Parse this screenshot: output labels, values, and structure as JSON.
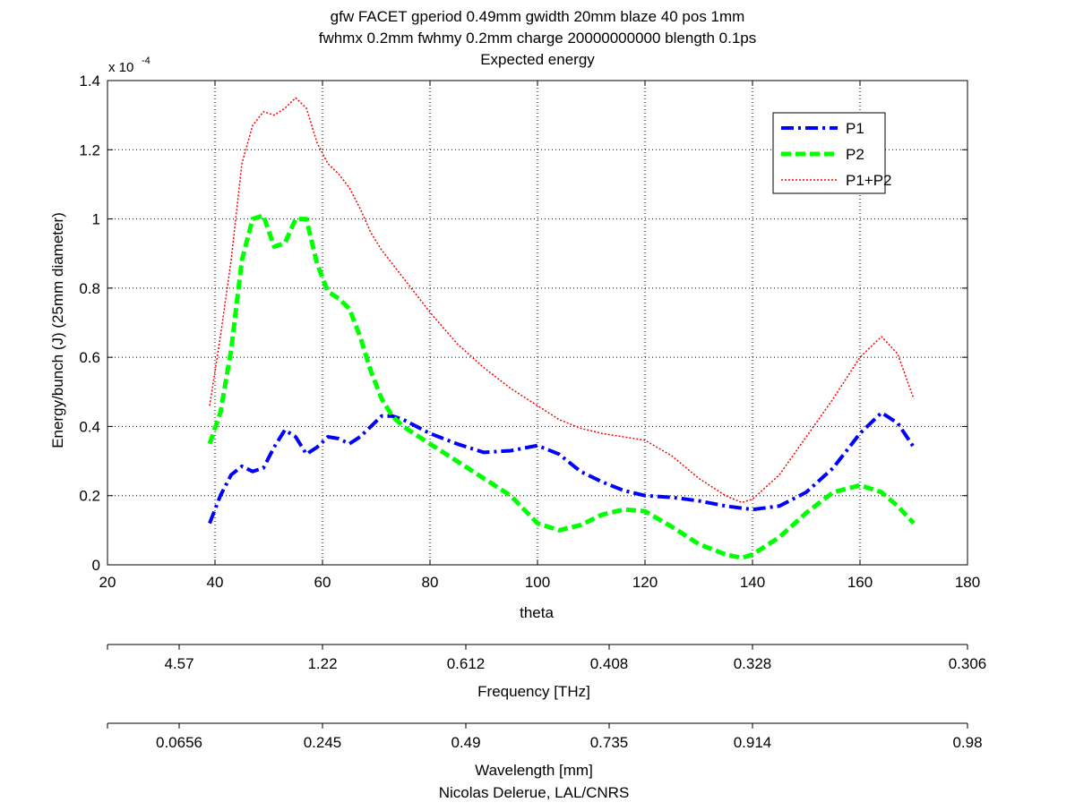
{
  "chart_data": {
    "type": "line",
    "title_lines": [
      "gfw FACET gperiod 0.49mm gwidth 20mm blaze 40 pos 1mm",
      "fwhmx 0.2mm fwhmy 0.2mm charge 20000000000 blength 0.1ps",
      "Expected energy"
    ],
    "xlabel": "theta",
    "ylabel": "Energy/bunch (J) (25mm diameter)",
    "y_multiplier_label": "x 10",
    "y_multiplier_exponent": "-4",
    "xlim": [
      20,
      180
    ],
    "ylim": [
      0,
      1.4
    ],
    "xticks": [
      20,
      40,
      60,
      80,
      100,
      120,
      140,
      160,
      180
    ],
    "xtick_labels": [
      "20",
      "40",
      "60",
      "80",
      "100",
      "120",
      "140",
      "160",
      "180"
    ],
    "yticks": [
      0,
      0.2,
      0.4,
      0.6,
      0.8,
      1.0,
      1.2,
      1.4
    ],
    "ytick_labels": [
      "0",
      "0.2",
      "0.4",
      "0.6",
      "0.8",
      "1",
      "1.2",
      "1.4"
    ],
    "grid": true,
    "legend_position": "top-right",
    "series": [
      {
        "name": "P1",
        "color": "#0000ff",
        "style": "dashdot",
        "x": [
          39,
          41,
          43,
          45,
          47,
          49,
          51,
          53,
          55,
          57,
          59,
          61,
          63,
          65,
          67,
          69,
          71,
          73,
          75,
          80,
          85,
          90,
          95,
          100,
          104,
          108,
          112,
          116,
          120,
          125,
          130,
          135,
          140,
          145,
          150,
          155,
          160,
          164,
          167,
          170
        ],
        "y": [
          0.12,
          0.2,
          0.26,
          0.285,
          0.27,
          0.28,
          0.34,
          0.39,
          0.37,
          0.32,
          0.34,
          0.37,
          0.365,
          0.35,
          0.37,
          0.4,
          0.43,
          0.43,
          0.42,
          0.38,
          0.35,
          0.325,
          0.33,
          0.345,
          0.32,
          0.27,
          0.24,
          0.215,
          0.2,
          0.195,
          0.185,
          0.17,
          0.16,
          0.17,
          0.21,
          0.28,
          0.38,
          0.44,
          0.41,
          0.34
        ]
      },
      {
        "name": "P2",
        "color": "#00ff00",
        "style": "dashed",
        "x": [
          39,
          41,
          43,
          45,
          47,
          49,
          51,
          53,
          55,
          57,
          59,
          61,
          63,
          65,
          67,
          69,
          71,
          73,
          75,
          80,
          85,
          90,
          95,
          100,
          104,
          108,
          112,
          116,
          120,
          125,
          130,
          135,
          138,
          140,
          145,
          150,
          155,
          160,
          164,
          167,
          170
        ],
        "y": [
          0.35,
          0.44,
          0.62,
          0.88,
          1.0,
          1.01,
          0.92,
          0.93,
          1.0,
          1.0,
          0.87,
          0.79,
          0.77,
          0.74,
          0.66,
          0.56,
          0.48,
          0.43,
          0.4,
          0.35,
          0.3,
          0.25,
          0.2,
          0.12,
          0.1,
          0.115,
          0.145,
          0.16,
          0.155,
          0.11,
          0.06,
          0.03,
          0.02,
          0.03,
          0.08,
          0.15,
          0.21,
          0.23,
          0.21,
          0.17,
          0.12
        ]
      },
      {
        "name": "P1+P2",
        "color": "#ff0000",
        "style": "dotted",
        "x": [
          39,
          41,
          43,
          45,
          47,
          49,
          51,
          53,
          55,
          57,
          59,
          61,
          63,
          65,
          67,
          69,
          71,
          73,
          75,
          80,
          85,
          90,
          95,
          100,
          104,
          108,
          112,
          116,
          120,
          125,
          130,
          135,
          138,
          140,
          145,
          150,
          155,
          160,
          164,
          167,
          170
        ],
        "y": [
          0.46,
          0.66,
          0.88,
          1.16,
          1.27,
          1.31,
          1.3,
          1.32,
          1.35,
          1.32,
          1.22,
          1.16,
          1.13,
          1.09,
          1.03,
          0.96,
          0.91,
          0.87,
          0.83,
          0.73,
          0.64,
          0.57,
          0.51,
          0.46,
          0.42,
          0.395,
          0.38,
          0.37,
          0.36,
          0.315,
          0.25,
          0.2,
          0.18,
          0.19,
          0.26,
          0.37,
          0.48,
          0.6,
          0.66,
          0.61,
          0.48
        ]
      }
    ],
    "secondary_axes": [
      {
        "label": "Frequency [THz]",
        "tick_labels": [
          "4.57",
          "1.22",
          "0.612",
          "0.408",
          "0.328",
          "0.306"
        ]
      },
      {
        "label": "Wavelength [mm]",
        "tick_labels": [
          "0.0656",
          "0.245",
          "0.49",
          "0.735",
          "0.914",
          "0.98"
        ]
      }
    ],
    "credit": "Nicolas Delerue, LAL/CNRS"
  }
}
